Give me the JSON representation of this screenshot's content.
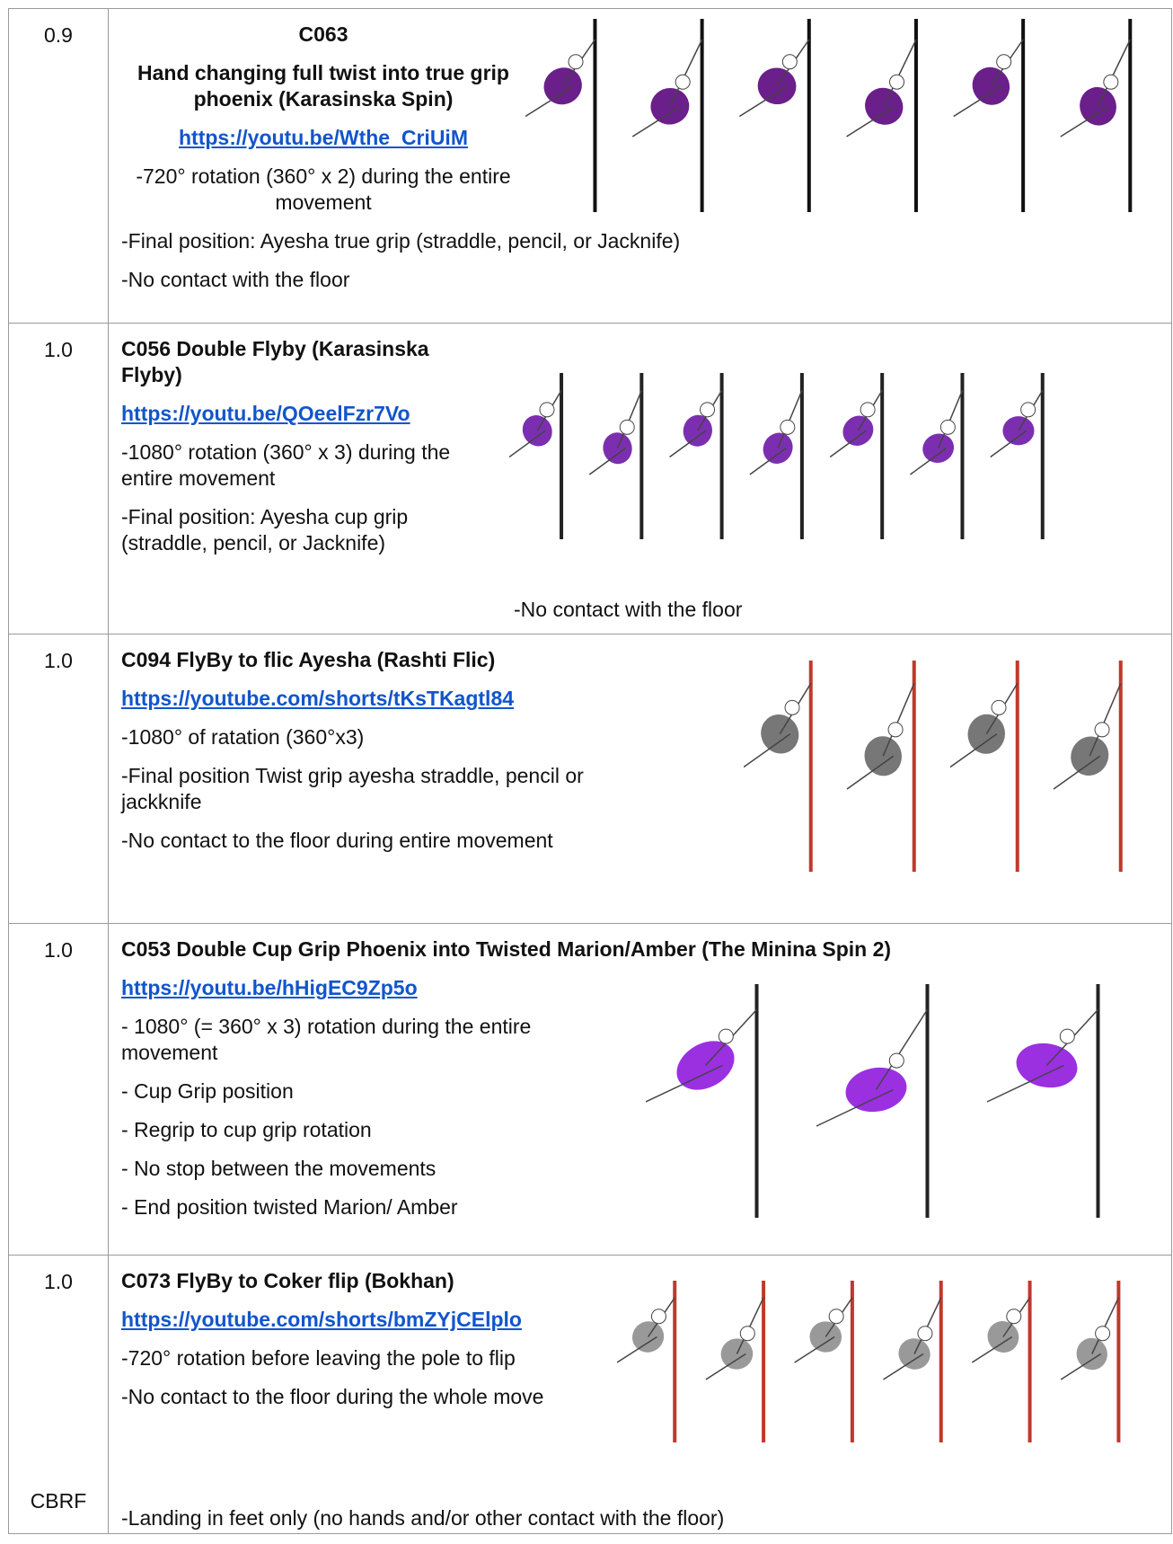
{
  "rows": [
    {
      "score": "0.9",
      "heading": [
        "C063",
        "Hand changing full twist into true grip phoenix (Karasinska Spin)"
      ],
      "link": "https://youtu.be/Wthe_CriUiM",
      "notes": [
        "-720° rotation (360° x 2) during the entire movement"
      ],
      "full_notes": [
        "-Final position: Ayesha true grip (straddle, pencil, or Jacknife)",
        "-No contact with the floor"
      ]
    },
    {
      "score": "1.0",
      "heading": [
        "C056 Double Flyby (Karasinska Flyby)"
      ],
      "link": "https://youtu.be/QOeelFzr7Vo",
      "notes": [
        "-1080° rotation (360° x 3) during the entire movement",
        "-Final position: Ayesha cup grip (straddle, pencil, or Jacknife)"
      ],
      "full_notes": [
        "-No contact with the floor"
      ]
    },
    {
      "score": "1.0",
      "heading": [
        "C094 FlyBy to flic Ayesha (Rashti Flic)"
      ],
      "link": "https://youtube.com/shorts/tKsTKagtl84",
      "notes": [
        "-1080° of ratation (360°x3)",
        "-Final position Twist grip ayesha straddle, pencil or jackknife",
        "-No contact to the floor during entire movement"
      ],
      "full_notes": []
    },
    {
      "score": "1.0",
      "heading": [
        "C053 Double Cup Grip Phoenix into Twisted Marion/Amber (The Minina Spin 2)"
      ],
      "link": "https://youtu.be/hHigEC9Zp5o",
      "notes": [
        "- 1080° (= 360° x 3) rotation during the entire movement",
        "- Cup Grip position",
        "- Regrip to cup grip rotation",
        "- No stop between the movements",
        "- End position twisted Marion/ Amber"
      ],
      "full_notes": []
    },
    {
      "score": "1.0",
      "label": "CBRF",
      "heading": [
        "C073 FlyBy to Coker flip (Bokhan)"
      ],
      "link": "https://youtube.com/shorts/bmZYjCElplo",
      "notes": [
        "-720° rotation before leaving the pole to flip",
        "-No contact to the floor during the whole move"
      ],
      "full_notes": [
        "-Landing in feet only (no hands and/or other contact with the floor)"
      ]
    }
  ]
}
